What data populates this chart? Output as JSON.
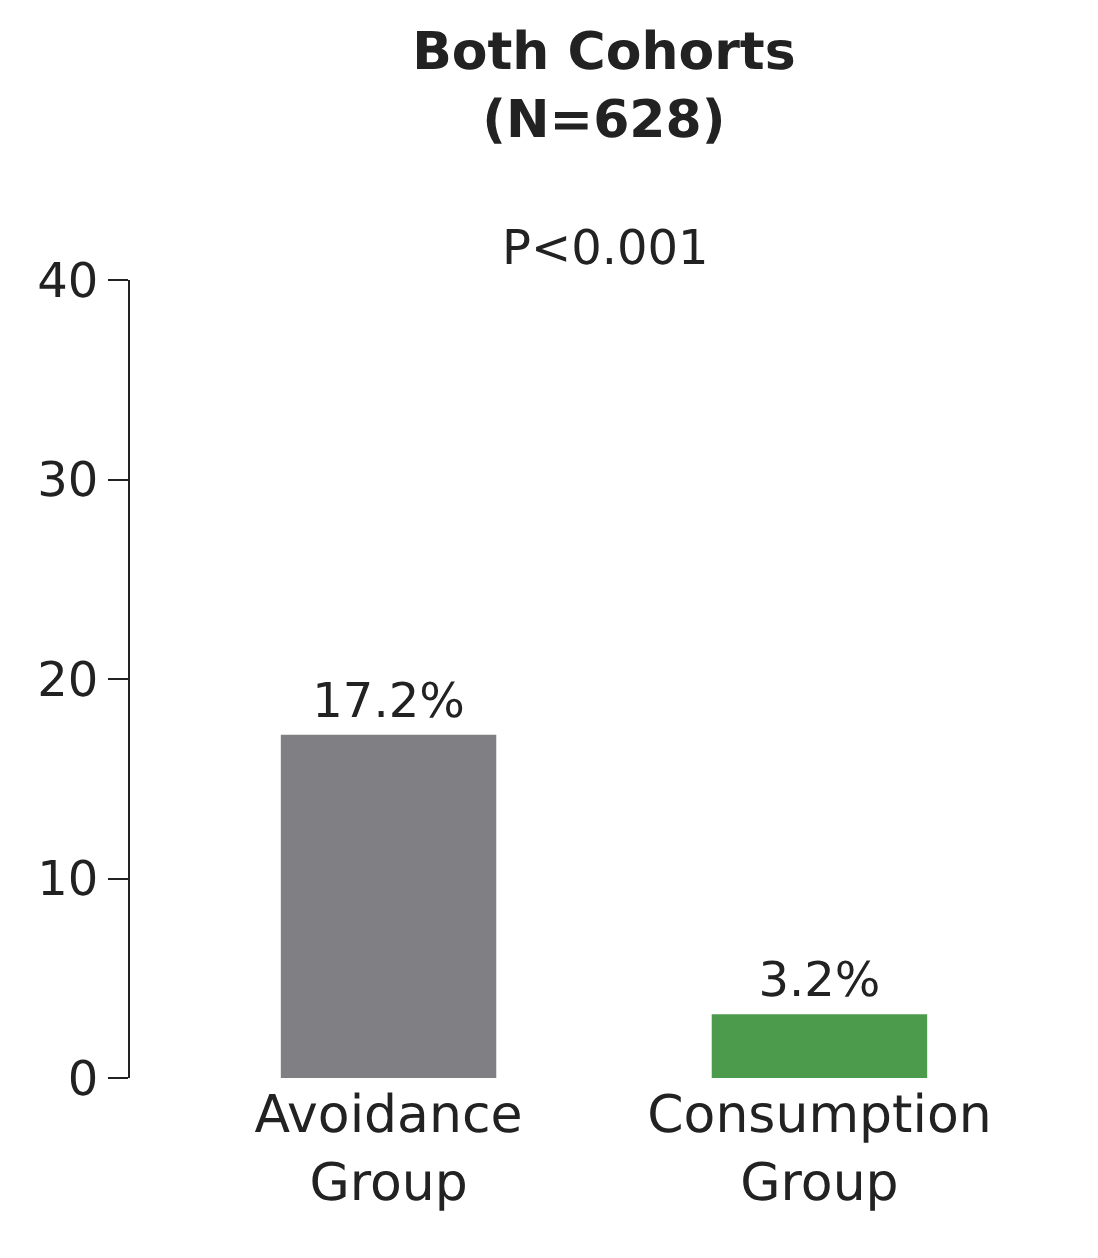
{
  "chart_data": {
    "type": "bar",
    "title": "Both Cohorts\n(N=628)",
    "categories": [
      "Avoidance\nGroup",
      "Consumption\nGroup"
    ],
    "values": [
      17.2,
      3.2
    ],
    "colors": [
      "#808084",
      "#4c9a4c"
    ],
    "value_labels": [
      "17.2%",
      "3.2%"
    ],
    "annotations": [
      "P<0.001"
    ],
    "ylim": [
      0,
      40
    ],
    "yticks": [
      0,
      10,
      20,
      30,
      40
    ],
    "grid": false
  }
}
